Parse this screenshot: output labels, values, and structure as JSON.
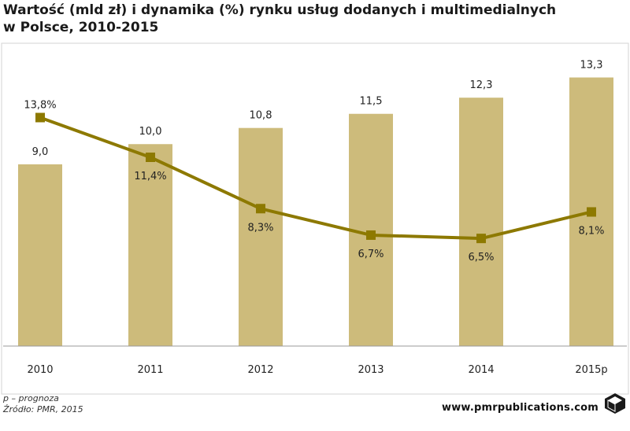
{
  "header": {
    "title": "Wartość (mld zł) i dynamika (%) rynku usług dodanych i multimedialnych\nw Polsce, 2010-2015"
  },
  "footer": {
    "note": "p – prognoza",
    "source": "Źródło: PMR, 2015",
    "brand": "www.pmrpublications.com",
    "logo_icon": "pmr-cube-logo-icon"
  },
  "colors": {
    "bar": "#cdbb7b",
    "line": "#8d7900",
    "frame": "#d3d3d3"
  },
  "chart_data": {
    "type": "bar",
    "categories": [
      "2010",
      "2011",
      "2012",
      "2013",
      "2014",
      "2015p"
    ],
    "series": [
      {
        "type": "bar",
        "values": [
          9.0,
          10.0,
          10.8,
          11.5,
          12.3,
          13.3
        ],
        "labels": [
          "9,0",
          "10,0",
          "10,8",
          "11,5",
          "12,3",
          "13,3"
        ]
      },
      {
        "type": "line",
        "values": [
          13.8,
          11.4,
          8.3,
          6.7,
          6.5,
          8.1
        ],
        "labels": [
          "13,8%",
          "11,4%",
          "8,3%",
          "6,7%",
          "6,5%",
          "8,1%"
        ]
      }
    ],
    "ylim_bar": [
      0,
      14.8
    ],
    "ylim_line": [
      0,
      18.05
    ],
    "grid": false,
    "legend": "none"
  }
}
